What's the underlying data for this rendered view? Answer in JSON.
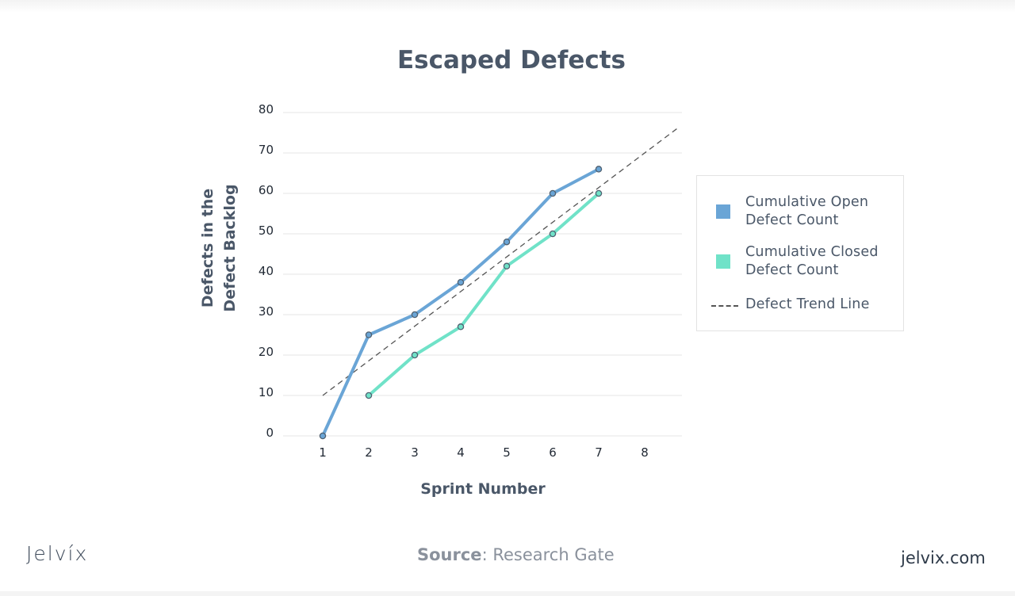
{
  "chart_data": {
    "type": "line",
    "title": "Escaped Defects",
    "xlabel": "Sprint Number",
    "ylabel_lines": [
      "Defects in the",
      "Defect Backlog"
    ],
    "x": [
      1,
      2,
      3,
      4,
      5,
      6,
      7,
      8
    ],
    "x_ticks": [
      "1",
      "2",
      "3",
      "4",
      "5",
      "6",
      "7",
      "8"
    ],
    "y_ticks": [
      "0",
      "10",
      "20",
      "30",
      "40",
      "50",
      "60",
      "70",
      "80"
    ],
    "ylim": [
      0,
      80
    ],
    "grid": true,
    "legend_position": "right",
    "series": [
      {
        "name": "Cumulative Open\nDefect Count",
        "color": "#6aa5d6",
        "x": [
          1,
          2,
          3,
          4,
          5,
          6,
          7
        ],
        "values": [
          0,
          25,
          30,
          38,
          48,
          60,
          66
        ]
      },
      {
        "name": "Cumulative Closed\nDefect Count",
        "color": "#70e2c8",
        "x": [
          2,
          3,
          4,
          5,
          6,
          7
        ],
        "values": [
          10,
          20,
          27,
          42,
          50,
          60
        ]
      }
    ],
    "trend_line": {
      "name": "Defect Trend Line",
      "color": "#555555",
      "x": [
        1,
        8.7
      ],
      "values": [
        10,
        76
      ]
    }
  },
  "footer": {
    "brand": "Jelvíx",
    "source_label": "Source",
    "source_text": ": Research Gate",
    "site": "jelvix.com"
  }
}
